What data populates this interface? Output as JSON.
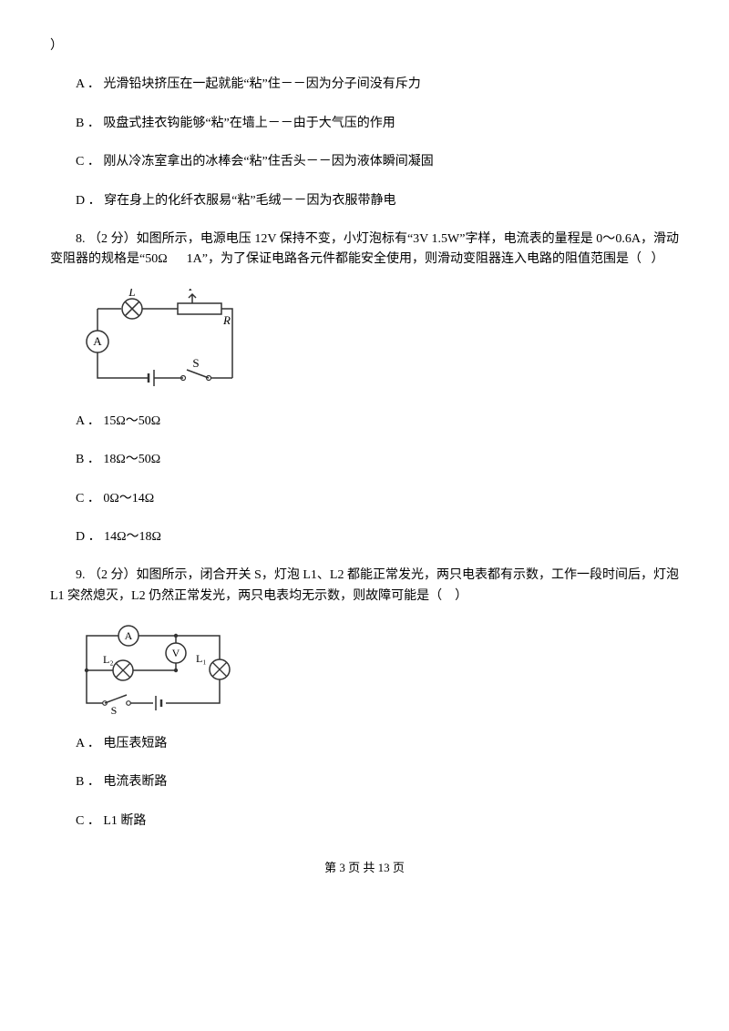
{
  "q7_trail": "）",
  "q7_options": {
    "A": "A ． 光滑铅块挤压在一起就能“粘”住－－因为分子间没有斥力",
    "B": "B ． 吸盘式挂衣钩能够“粘”在墙上－－由于大气压的作用",
    "C": "C ． 刚从冷冻室拿出的冰棒会“粘”住舌头－－因为液体瞬间凝固",
    "D": "D ． 穿在身上的化纤衣服易“粘”毛绒－－因为衣服带静电"
  },
  "q8_text": "8. （2 分）如图所示，电源电压 12V 保持不变，小灯泡标有“3V  1.5W”字样，电流表的量程是 0～0.6A，滑动变阻器的规格是“50Ω      1A”，为了保证电路各元件都能安全使用，则滑动变阻器连入电路的阻值范围是（   ）",
  "q8_circuit": {
    "width": 185,
    "height": 115,
    "stroke": "#323232",
    "labels": {
      "L": "L",
      "P": "P",
      "R": "R",
      "A": "A",
      "S": "S"
    },
    "label_font": "italic 13px serif"
  },
  "q8_options": {
    "A": "A ． 15Ω～50Ω",
    "B": "B ． 18Ω～50Ω",
    "C": "C ． 0Ω～14Ω",
    "D": "D ． 14Ω～18Ω"
  },
  "q9_text": "9. （2 分）如图所示，闭合开关 S，灯泡 L1、L2 都能正常发光，两只电表都有示数，工作一段时间后，灯泡 L1 突然熄灭，L2 仍然正常发光，两只电表均无示数，则故障可能是（    ）",
  "q9_circuit": {
    "width": 170,
    "height": 100,
    "stroke": "#323232",
    "labels": {
      "A": "A",
      "V": "V",
      "L1": "L₁",
      "L2": "L₂",
      "S": "S"
    },
    "label_font": "13px serif"
  },
  "q9_options": {
    "A": "A ． 电压表短路",
    "B": "B ． 电流表断路",
    "C": "C ． L1 断路"
  },
  "footer": {
    "text": "第 3 页 共 13 页"
  }
}
